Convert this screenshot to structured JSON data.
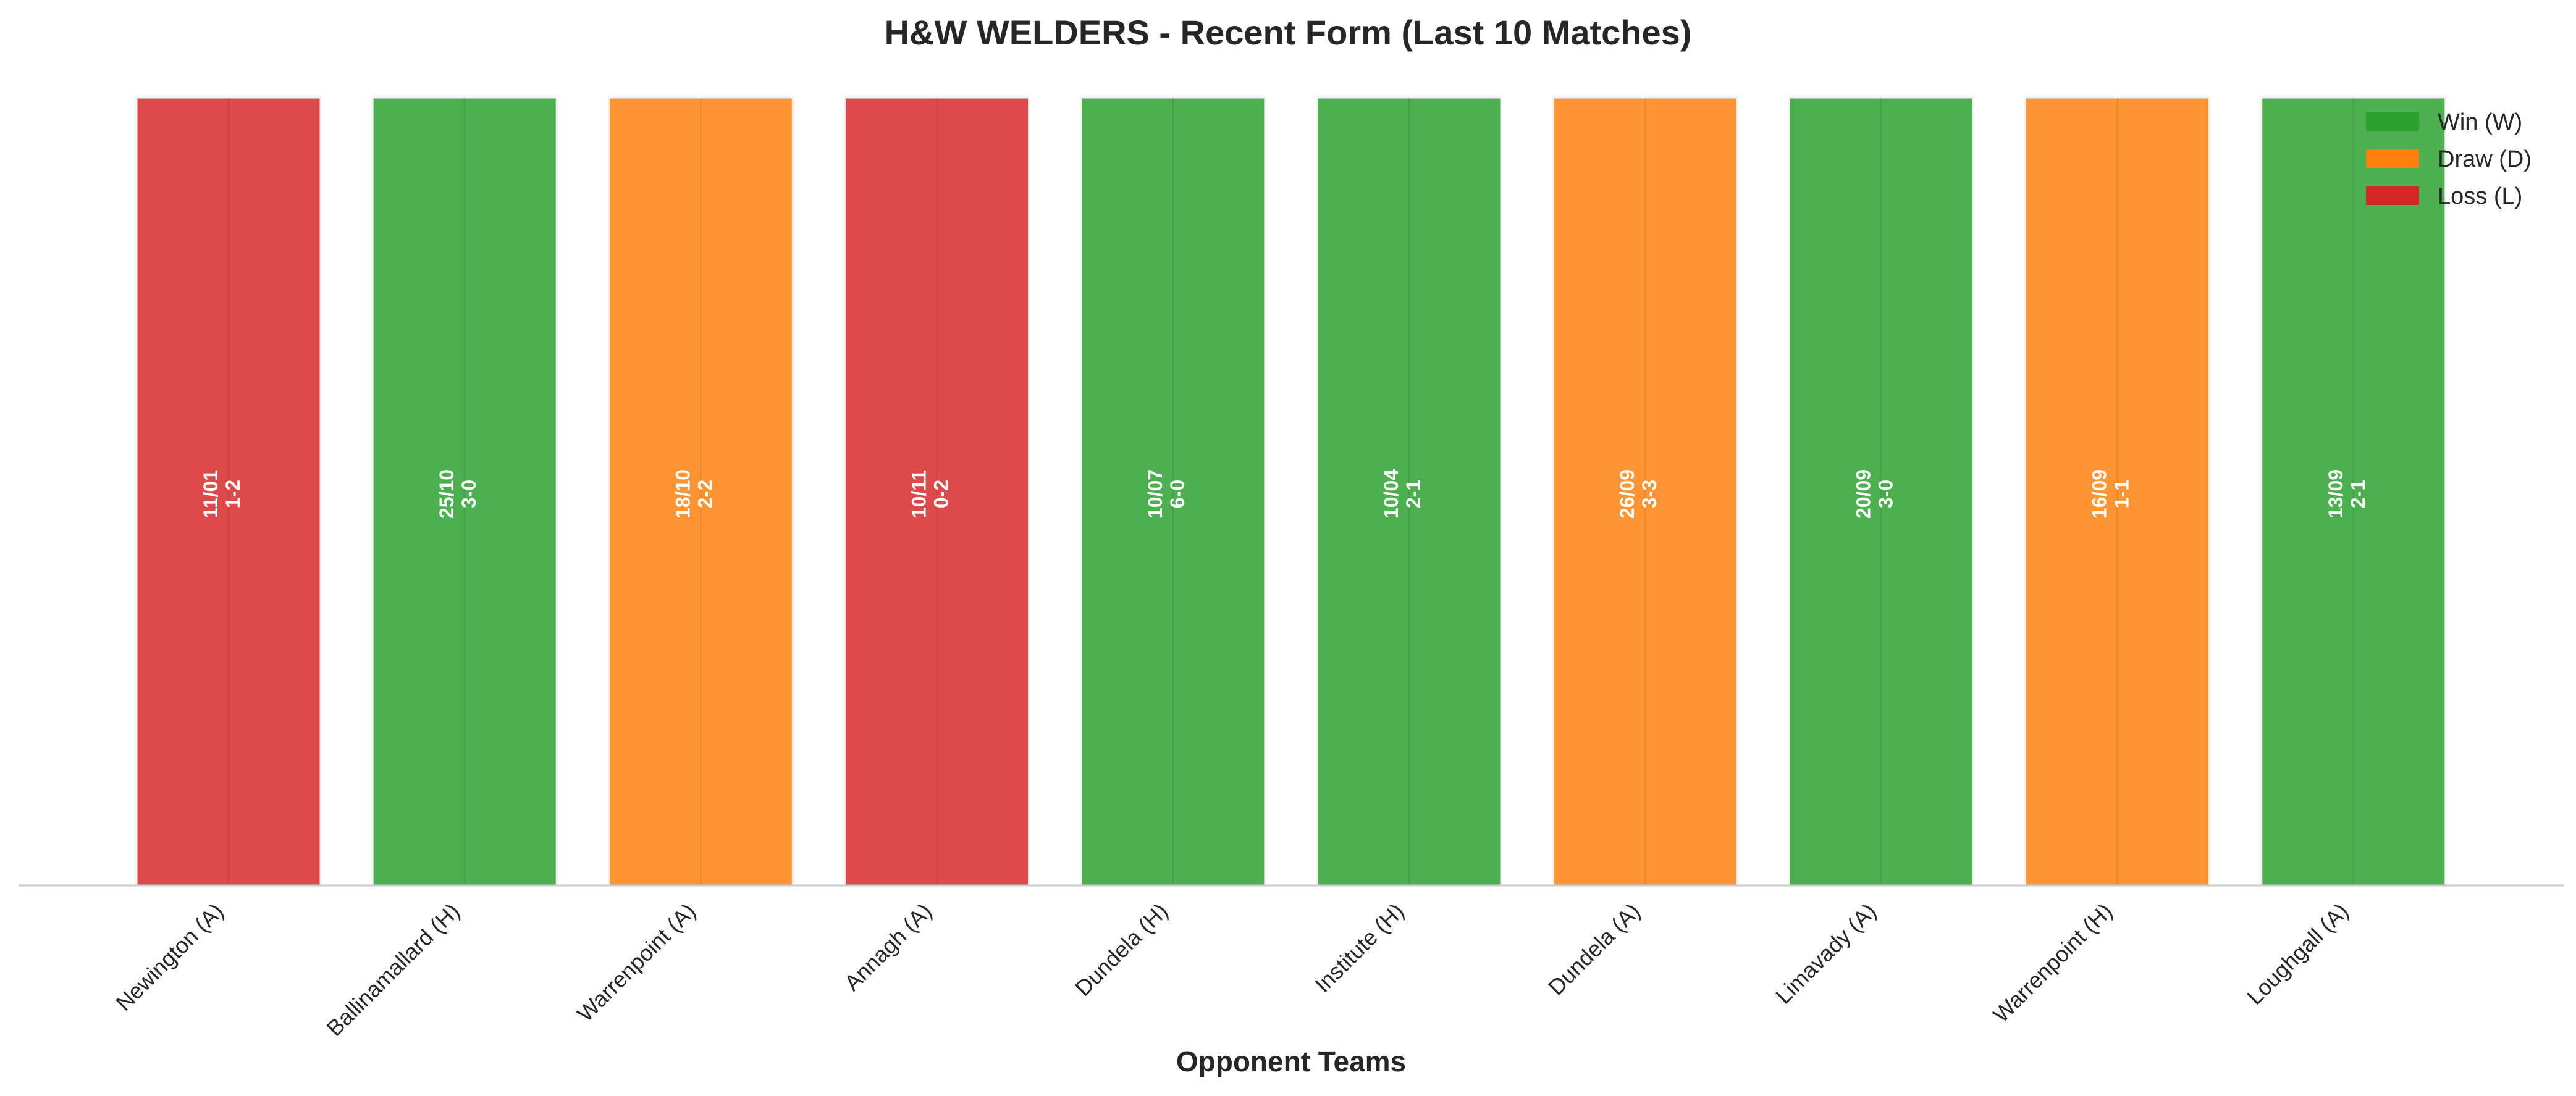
{
  "chart_data": {
    "type": "bar",
    "title": "H&W WELDERS - Recent Form (Last 10 Matches)",
    "xlabel": "Opponent Teams",
    "ylabel": "",
    "categories": [
      "Newington (A)",
      "Ballinamallard (H)",
      "Warrenpoint (A)",
      "Annagh (A)",
      "Dundela (H)",
      "Institute (H)",
      "Dundela (A)",
      "Limavady (A)",
      "Warrenpoint (H)",
      "Loughgall (A)"
    ],
    "values": [
      1,
      1,
      1,
      1,
      1,
      1,
      1,
      1,
      1,
      1
    ],
    "results": [
      "L",
      "W",
      "D",
      "L",
      "W",
      "W",
      "D",
      "W",
      "D",
      "W"
    ],
    "dates": [
      "11/01",
      "25/10",
      "18/10",
      "10/11",
      "10/07",
      "10/04",
      "26/09",
      "20/09",
      "16/09",
      "13/09"
    ],
    "scores": [
      "1-2",
      "3-0",
      "2-2",
      "0-2",
      "6-0",
      "2-1",
      "3-3",
      "3-0",
      "1-1",
      "2-1"
    ],
    "ylim": [
      0,
      1
    ],
    "grid": false,
    "legend_position": "top-right",
    "legend": [
      {
        "key": "W",
        "label": "Win (W)",
        "color": "#2ca02c"
      },
      {
        "key": "D",
        "label": "Draw (D)",
        "color": "#ff7f0e"
      },
      {
        "key": "L",
        "label": "Loss (L)",
        "color": "#d62728"
      }
    ],
    "bar_colors": {
      "W": "#4caf50",
      "D": "#ff9433",
      "L": "#dc4a4a"
    }
  }
}
